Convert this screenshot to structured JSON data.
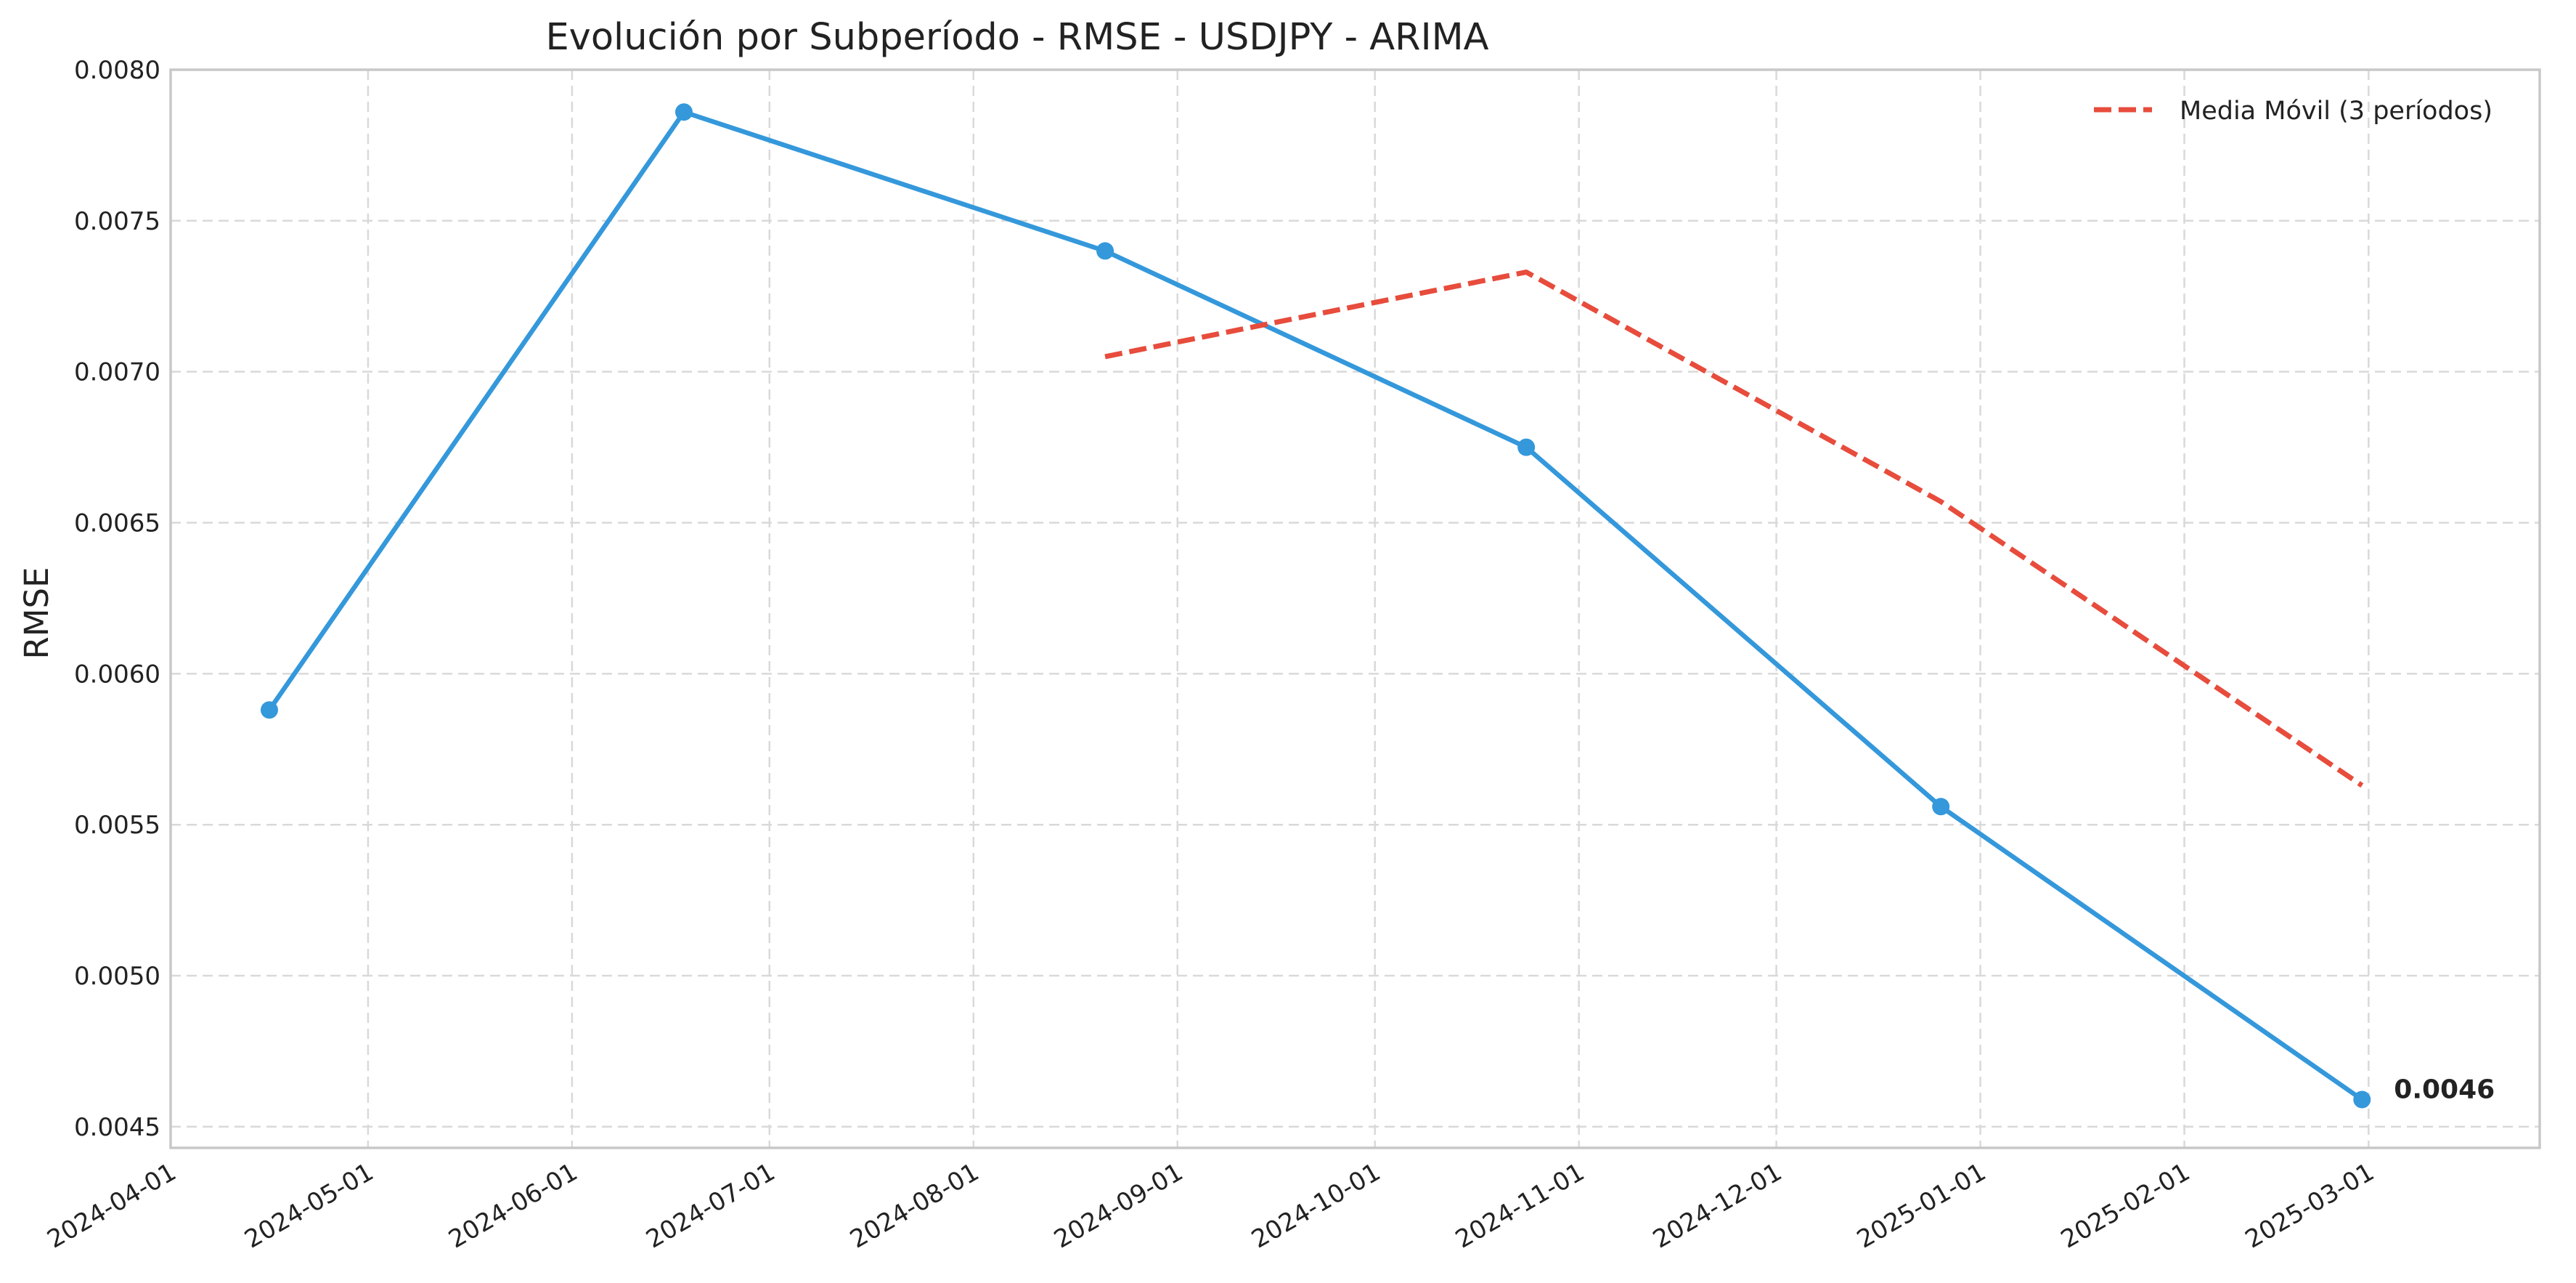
{
  "chart_data": {
    "type": "line",
    "title": "Evolución por Subperíodo - RMSE - USDJPY - ARIMA",
    "xlabel": "",
    "ylabel": "RMSE",
    "x_ticks": [
      "2024-04-01",
      "2024-05-01",
      "2024-06-01",
      "2024-07-01",
      "2024-08-01",
      "2024-09-01",
      "2024-10-01",
      "2024-11-01",
      "2024-12-01",
      "2025-01-01",
      "2025-02-01",
      "2025-03-01"
    ],
    "xlim": [
      "2024-04-01",
      "2025-03-27"
    ],
    "ylim": [
      0.00443,
      0.008
    ],
    "y_ticks": [
      "0.0045",
      "0.0050",
      "0.0055",
      "0.0060",
      "0.0065",
      "0.0070",
      "0.0075",
      "0.0080"
    ],
    "grid": true,
    "legend_position": "top-right",
    "series": [
      {
        "key": "rmse",
        "color": "#3498db",
        "style": "solid-markers",
        "x": [
          "2024-04-16",
          "2024-06-18",
          "2024-08-21",
          "2024-10-24",
          "2024-12-26",
          "2025-02-28"
        ],
        "y": [
          0.00588,
          0.00786,
          0.0074,
          0.00675,
          0.00556,
          0.00459
        ]
      },
      {
        "key": "moving_average",
        "name": "Media Móvil (3 períodos)",
        "color": "#e74c3c",
        "style": "dashed",
        "x": [
          "2024-08-21",
          "2024-10-24",
          "2024-12-26",
          "2025-02-28"
        ],
        "y": [
          0.00705,
          0.00733,
          0.00657,
          0.00563
        ]
      }
    ],
    "annotation": {
      "text": "0.0046",
      "x": "2025-02-28",
      "y": 0.00459
    }
  }
}
